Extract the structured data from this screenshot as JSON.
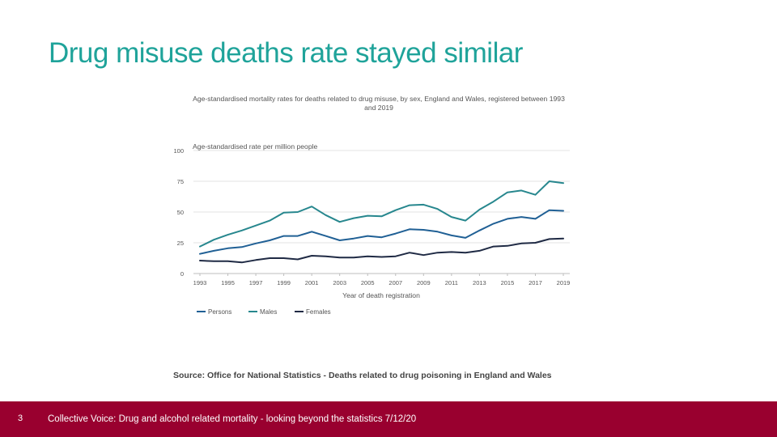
{
  "slide": {
    "title": "Drug misuse deaths rate stayed similar",
    "source": "Source: Office for National Statistics - Deaths related to drug poisoning in England and Wales",
    "footer_text": "Collective Voice: Drug and alcohol related mortality - looking beyond the statistics 7/12/20",
    "slide_number": "3",
    "accent_color": "#1fa39a",
    "footer_color": "#99002f"
  },
  "chart_data": {
    "type": "line",
    "title": "Age-standardised mortality rates for deaths related to drug misuse, by sex, England and Wales, registered between 1993 and 2019",
    "ylabel": "Age-standardised rate per million people",
    "xlabel": "Year of death registration",
    "ylim": [
      0,
      100
    ],
    "yticks": [
      "0",
      "25",
      "50",
      "75",
      "100"
    ],
    "xticks": [
      "1993",
      "1995",
      "1997",
      "1999",
      "2001",
      "2003",
      "2005",
      "2007",
      "2009",
      "2011",
      "2013",
      "2015",
      "2017",
      "2019"
    ],
    "x": [
      1993,
      1994,
      1995,
      1996,
      1997,
      1998,
      1999,
      2000,
      2001,
      2002,
      2003,
      2004,
      2005,
      2006,
      2007,
      2008,
      2009,
      2010,
      2011,
      2012,
      2013,
      2014,
      2015,
      2016,
      2017,
      2018,
      2019
    ],
    "grid": true,
    "legend_position": "bottom-left",
    "series": [
      {
        "name": "Persons",
        "color": "#206095",
        "values": [
          16,
          18.5,
          20.5,
          21.5,
          24.5,
          27,
          30.5,
          30.5,
          34,
          30.5,
          27,
          28.5,
          30.5,
          29.5,
          32.5,
          36,
          35.5,
          34,
          31,
          29,
          35,
          40.5,
          44.5,
          46,
          44.5,
          51.5,
          51
        ]
      },
      {
        "name": "Males",
        "color": "#27878e",
        "values": [
          22,
          27.5,
          31.5,
          35,
          39,
          43,
          49.5,
          50,
          54.5,
          47.5,
          42,
          45,
          47,
          46.5,
          51.5,
          55.5,
          56,
          52.5,
          46,
          43,
          52,
          58.5,
          66,
          67.5,
          64,
          75,
          73.5
        ]
      },
      {
        "name": "Females",
        "color": "#1f2a44",
        "values": [
          10.5,
          10,
          10,
          9,
          11,
          12.5,
          12.5,
          11.5,
          14.5,
          14,
          13,
          13,
          14,
          13.5,
          14,
          17,
          15,
          17,
          17.5,
          17,
          18.5,
          22,
          22.5,
          24.5,
          25,
          28,
          28.5
        ]
      }
    ]
  }
}
